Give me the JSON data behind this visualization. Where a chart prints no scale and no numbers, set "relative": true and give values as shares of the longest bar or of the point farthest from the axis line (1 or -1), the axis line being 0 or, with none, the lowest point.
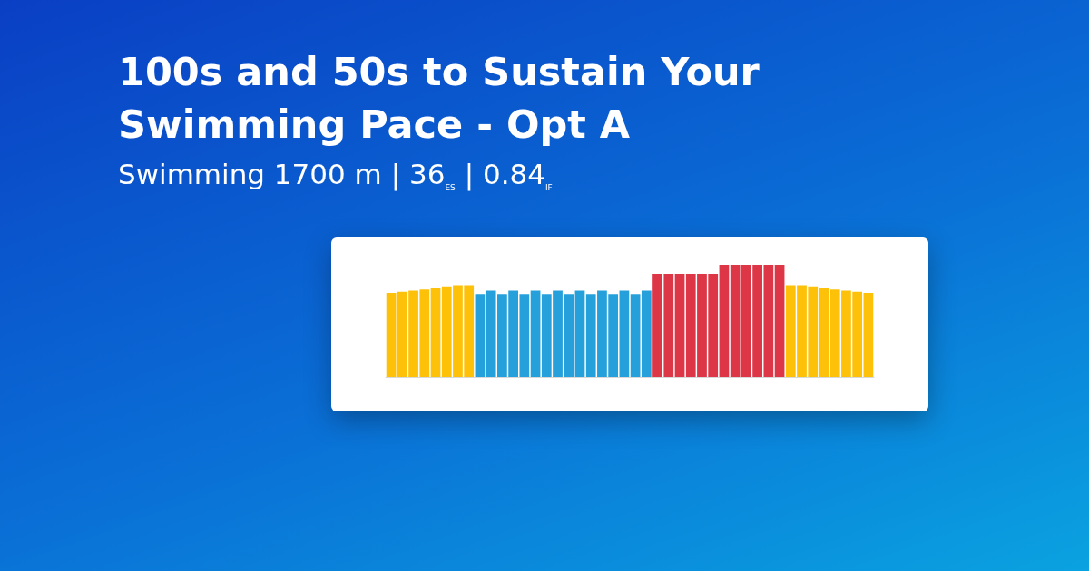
{
  "chart_data": {
    "type": "bar",
    "relative": true,
    "title": "100s and 50s to Sustain Your Swimming Pace - Opt A",
    "subtitle": "Swimming 1700 m | 36$_{ES}$ | 0.84$_{IF}$",
    "categories": [
      null,
      null,
      null,
      null,
      null,
      null,
      null,
      null,
      null,
      null,
      null,
      null,
      null,
      null,
      null,
      null,
      null,
      null,
      null,
      null,
      null,
      null,
      null,
      null,
      null,
      null,
      null,
      null,
      null,
      null,
      null,
      null,
      null,
      null,
      null,
      null,
      null,
      null,
      null,
      null,
      null,
      null,
      null,
      null
    ],
    "values": [
      0.75,
      0.76,
      0.77,
      0.78,
      0.79,
      0.8,
      0.81,
      0.81,
      0.74,
      0.77,
      0.74,
      0.77,
      0.74,
      0.77,
      0.74,
      0.77,
      0.74,
      0.77,
      0.74,
      0.77,
      0.74,
      0.77,
      0.74,
      0.77,
      0.92,
      0.92,
      0.92,
      0.92,
      0.92,
      0.92,
      1,
      1,
      1,
      1,
      1,
      1,
      0.81,
      0.81,
      0.8,
      0.79,
      0.78,
      0.77,
      0.76,
      0.75
    ],
    "colors": [
      "#fec10a",
      "#fec10a",
      "#fec10a",
      "#fec10a",
      "#fec10a",
      "#fec10a",
      "#fec10a",
      "#fec10a",
      "#25a0db",
      "#25a0db",
      "#25a0db",
      "#25a0db",
      "#25a0db",
      "#25a0db",
      "#25a0db",
      "#25a0db",
      "#25a0db",
      "#25a0db",
      "#25a0db",
      "#25a0db",
      "#25a0db",
      "#25a0db",
      "#25a0db",
      "#25a0db",
      "#dd3647",
      "#dd3647",
      "#dd3647",
      "#dd3647",
      "#dd3647",
      "#dd3647",
      "#dd3647",
      "#dd3647",
      "#dd3647",
      "#dd3647",
      "#dd3647",
      "#dd3647",
      "#fec10a",
      "#fec10a",
      "#fec10a",
      "#fec10a",
      "#fec10a",
      "#fec10a",
      "#fec10a",
      "#fec10a"
    ]
  }
}
